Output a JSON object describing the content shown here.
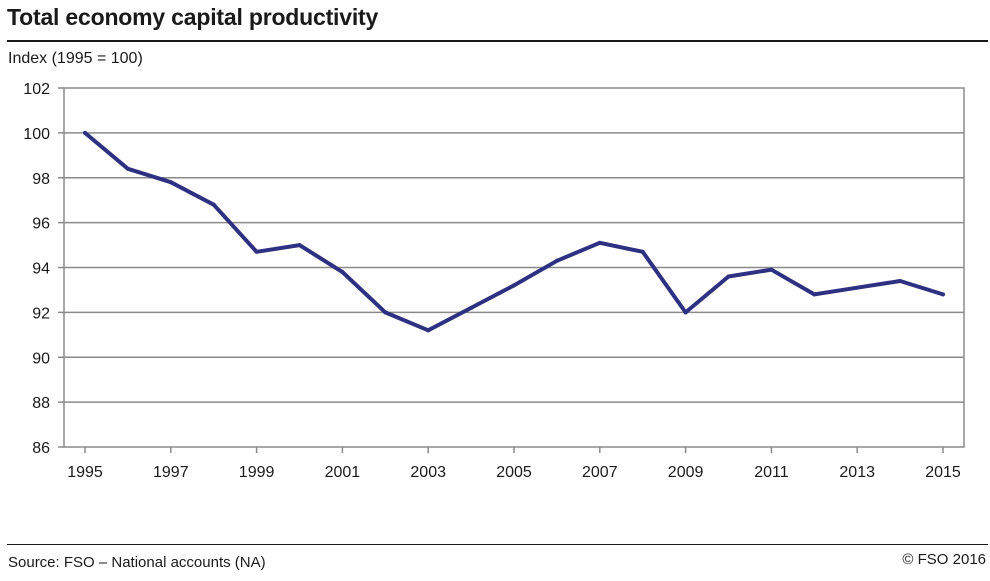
{
  "header": {
    "title": "Total economy capital productivity",
    "unit_label": "Index (1995 = 100)"
  },
  "footer": {
    "source": "Source: FSO – National accounts (NA)",
    "copyright": "© FSO 2016"
  },
  "colors": {
    "line": "#2e3182",
    "grid": "#8a8a8a",
    "frame": "#8a8a8a"
  },
  "chart_data": {
    "type": "line",
    "title": "Total economy capital productivity",
    "ylabel": "Index (1995 = 100)",
    "xlabel": "",
    "ylim": [
      86,
      102
    ],
    "yticks": [
      86,
      88,
      90,
      92,
      94,
      96,
      98,
      100,
      102
    ],
    "xticks": [
      1995,
      1997,
      1999,
      2001,
      2003,
      2005,
      2007,
      2009,
      2011,
      2013,
      2015
    ],
    "grid": "horizontal",
    "x": [
      1995,
      1996,
      1997,
      1998,
      1999,
      2000,
      2001,
      2002,
      2003,
      2004,
      2005,
      2006,
      2007,
      2008,
      2009,
      2010,
      2011,
      2012,
      2013,
      2014,
      2015
    ],
    "series": [
      {
        "values": [
          100.0,
          98.4,
          97.8,
          96.8,
          94.7,
          95.0,
          93.8,
          92.0,
          91.2,
          92.2,
          93.2,
          94.3,
          95.1,
          94.7,
          92.0,
          93.6,
          93.9,
          92.8,
          93.1,
          93.4,
          92.8
        ]
      }
    ]
  }
}
